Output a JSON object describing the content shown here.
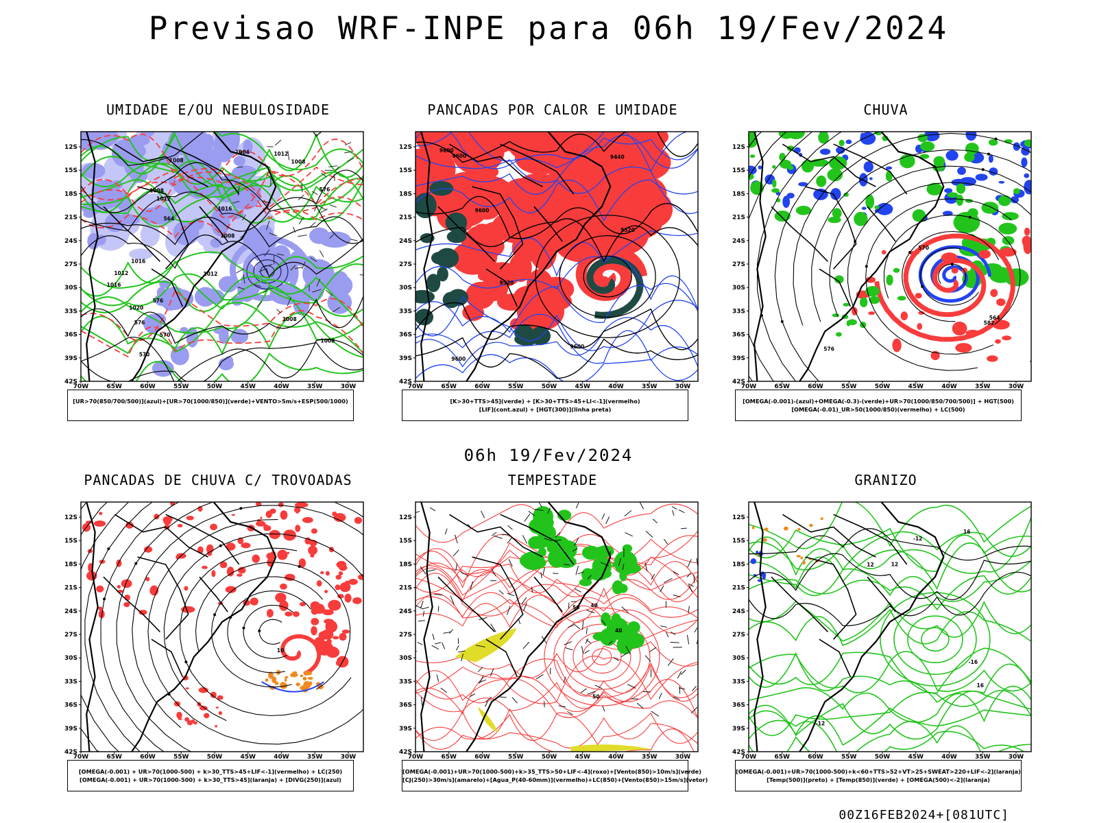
{
  "title": "Previsao WRF-INPE  para 06h 19/Fev/2024",
  "middle_title": "06h 19/Fev/2024",
  "footer": "00Z16FEB2024+[081UTC]",
  "axes": {
    "lat_labels": [
      "12S",
      "15S",
      "18S",
      "21S",
      "24S",
      "27S",
      "30S",
      "33S",
      "36S",
      "39S",
      "42S"
    ],
    "lon_labels": [
      "70W",
      "65W",
      "60W",
      "55W",
      "50W",
      "45W",
      "40W",
      "35W",
      "30W"
    ]
  },
  "colors": {
    "blue_fill": "#9a9cf0",
    "blue_light": "#c4c6f7",
    "green_contour": "#22c41c",
    "red_fill": "#f83c3c",
    "dark_teal": "#1f4a44",
    "blue": "#2244ee",
    "orange": "#f08a1e",
    "yellow": "#e0dc2a",
    "purple": "#c020c0",
    "land": "#000000"
  },
  "panels": [
    {
      "title": "UMIDADE E/OU NEBULOSIDADE",
      "legend": [
        "[UR>70(850/700/500)](azul)+[UR>70(1000/850)](verde)+VENTO>5m/s+ESP(500/1000)"
      ],
      "labels": [
        "1012",
        "1008",
        "1008",
        "1008",
        "1008",
        "1008",
        "1012",
        "1012",
        "1016",
        "1020",
        "1004",
        "1008",
        "1012",
        "1016",
        "1016",
        "576",
        "576",
        "570",
        "576",
        "570",
        "564"
      ]
    },
    {
      "title": "PANCADAS POR CALOR E UMIDADE",
      "legend": [
        "[K>30+TTS>45](verde) + [K>30+TTS>45+LI<-1](vermelho)",
        "[LIF](cont.azul) + [HGT(300)](linha preta)"
      ],
      "labels": [
        "9600",
        "9600",
        "9600",
        "9600",
        "9520",
        "9520",
        "9600",
        "9440"
      ]
    },
    {
      "title": "CHUVA",
      "legend": [
        "[OMEGA(-0.001)-(azul)+OMEGA(-0.3)-(verde)+UR>70(1000/850/700/500)] + HGT(500)",
        "[OMEGA(-0.01)_UR>50(1000/850)(vermelho) + LC(500)"
      ],
      "labels": [
        "582",
        "576",
        "570",
        "564"
      ]
    },
    {
      "title": "PANCADAS DE CHUVA C/ TROVOADAS",
      "legend": [
        "[OMEGA(-0.001) + UR>70(1000-500) + k>30_TTS>45+LIF<-1](vermelho) + LC(250)",
        "[OMEGA(-0.001) + UR>70(1000-500) + k>30_TTS>45](laranja) + [DIVG(250)](azul)"
      ],
      "labels": [
        "10"
      ]
    },
    {
      "title": "TEMPESTADE",
      "legend": [
        "[OMEGA(-0.001)+UR>70(1000-500)+k>35_TTS>50+LIF<-4](roxo)+[Vento(850)>10m/s](verde)",
        "[CJ(250)>30m/s](amarelo)+[Agua_P(40-60mm)](vermelho)+LC(850)+[Vento(850)>15m/s](vetor)"
      ],
      "labels": [
        "50",
        "50",
        "40",
        "40"
      ]
    },
    {
      "title": "GRANIZO",
      "legend": [
        "[OMEGA(-0.001)+UR>70(1000-500)+k<60+TTS>52+VT>25+SWEAT>220+LIF<-2](laranja)",
        "[Temp(500)](preto) + [Temp(850)](verde) + [OMEGA(500)<-2](laranja)"
      ],
      "labels": [
        "12",
        "16",
        "16",
        "12",
        "-12",
        "-16",
        "-12"
      ]
    }
  ]
}
